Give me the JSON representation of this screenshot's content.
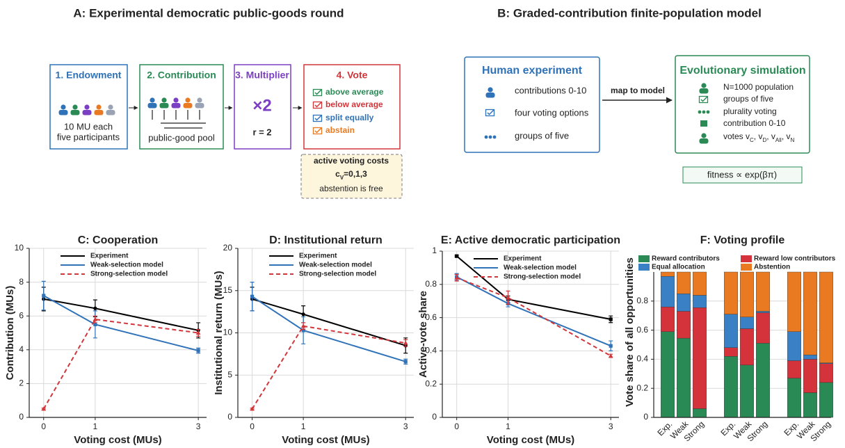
{
  "panel_a": {
    "title": "A: Experimental democratic public-goods round",
    "steps": [
      {
        "label": "1. Endowment",
        "lines": [
          "10 MU each",
          "five participants"
        ]
      },
      {
        "label": "2. Contribution",
        "lines": [
          "public-good pool"
        ]
      },
      {
        "label": "3. Multiplier",
        "lines": [
          "×2",
          "r = 2"
        ]
      },
      {
        "label": "4. Vote",
        "options": [
          "above average",
          "below average",
          "split equally",
          "abstain"
        ]
      }
    ],
    "note": {
      "title": "active voting costs",
      "formula": [
        "c",
        "V",
        "=0,1,3"
      ],
      "footer": "abstention is free"
    }
  },
  "panel_b": {
    "title": "B: Graded-contribution finite-population model",
    "experiment": {
      "title": "Human experiment",
      "items": [
        "contributions 0-10",
        "four voting options",
        "groups of five"
      ]
    },
    "arrow_label": "map to model",
    "simulation": {
      "title": "Evolutionary simulation",
      "items": [
        "N=1000 population",
        "groups of five",
        "plurality voting",
        "contribution 0-10"
      ],
      "votes": [
        "votes v",
        "C",
        ", v",
        "D",
        ", v",
        "All",
        ", v",
        "N"
      ]
    },
    "fitness": "fitness ∝ exp(βπ)"
  },
  "chart_data": [
    {
      "type": "line",
      "title": "C: Cooperation",
      "xlabel": "Voting cost (MUs)",
      "ylabel": "Contribution (MUs)",
      "x": [
        0,
        1,
        3
      ],
      "xlim": [
        -0.28,
        3.16
      ],
      "xticks": [
        0,
        1,
        3
      ],
      "ylim": [
        0,
        10
      ],
      "yticks": [
        0,
        2,
        4,
        6,
        8,
        10
      ],
      "grid": true,
      "legend": "upper center",
      "series": [
        {
          "name": "Experiment",
          "color": "#000000",
          "linestyle": "solid",
          "marker": "circle",
          "values": [
            7.0,
            6.45,
            5.15
          ],
          "errors": [
            0.7,
            0.5,
            0.45
          ]
        },
        {
          "name": "Weak-selection model",
          "color": "#2f72b8",
          "linestyle": "solid",
          "marker": "square",
          "values": [
            7.2,
            5.5,
            3.95
          ],
          "errors": [
            0.85,
            0.8,
            0.15
          ]
        },
        {
          "name": "Strong-selection model",
          "color": "#d0363a",
          "linestyle": "dashed",
          "marker": "triangle",
          "values": [
            0.5,
            5.8,
            5.0
          ],
          "errors": [
            0.05,
            0.2,
            0.2
          ]
        }
      ]
    },
    {
      "type": "line",
      "title": "D: Institutional return",
      "xlabel": "Voting cost (MUs)",
      "ylabel": "Institutional return (MUs)",
      "x": [
        0,
        1,
        3
      ],
      "xlim": [
        -0.28,
        3.16
      ],
      "xticks": [
        0,
        1,
        3
      ],
      "ylim": [
        0,
        20
      ],
      "yticks": [
        0,
        5,
        10,
        15,
        20
      ],
      "grid": true,
      "legend": "upper center",
      "series": [
        {
          "name": "Experiment",
          "color": "#000000",
          "linestyle": "solid",
          "marker": "circle",
          "values": [
            14.0,
            12.2,
            8.5
          ],
          "errors": [
            1.4,
            1.0,
            0.9
          ]
        },
        {
          "name": "Weak-selection model",
          "color": "#2f72b8",
          "linestyle": "solid",
          "marker": "square",
          "values": [
            14.3,
            10.3,
            6.6
          ],
          "errors": [
            1.7,
            1.6,
            0.3
          ]
        },
        {
          "name": "Strong-selection model",
          "color": "#d0363a",
          "linestyle": "dashed",
          "marker": "triangle",
          "values": [
            1.0,
            10.8,
            8.8
          ],
          "errors": [
            0.1,
            0.4,
            0.4
          ]
        }
      ]
    },
    {
      "type": "line",
      "title": "E: Active democratic participation",
      "xlabel": "Voting cost (MUs)",
      "ylabel": "Active-vote share",
      "x": [
        0,
        1,
        3
      ],
      "xlim": [
        -0.28,
        3.16
      ],
      "xticks": [
        0,
        1,
        3
      ],
      "ylim": [
        0,
        1
      ],
      "yticks": [
        0,
        0.2,
        0.4,
        0.6,
        0.8,
        1
      ],
      "grid": true,
      "legend": "upper center",
      "series": [
        {
          "name": "Experiment",
          "color": "#000000",
          "linestyle": "solid",
          "marker": "square",
          "values": [
            0.97,
            0.71,
            0.59
          ],
          "errors": [
            0.005,
            0.02,
            0.02
          ]
        },
        {
          "name": "Weak-selection model",
          "color": "#2f72b8",
          "linestyle": "solid",
          "marker": "square",
          "values": [
            0.845,
            0.685,
            0.43
          ],
          "errors": [
            0.02,
            0.02,
            0.03
          ]
        },
        {
          "name": "Strong-selection model",
          "color": "#d0363a",
          "linestyle": "dashed",
          "marker": "triangle",
          "values": [
            0.84,
            0.72,
            0.37
          ],
          "errors": [
            0.02,
            0.04,
            0.01
          ]
        }
      ]
    },
    {
      "type": "stacked_bar",
      "title": "F: Voting profile",
      "ylabel": "Vote share of all opportunities",
      "categories": [
        "Exp.",
        "Weak",
        "Strong",
        "Exp.",
        "Weak",
        "Strong",
        "Exp.",
        "Weak",
        "Strong"
      ],
      "ylim": [
        0,
        1
      ],
      "yticks": [
        0,
        0.2,
        0.4,
        0.6,
        0.8
      ],
      "grid": true,
      "legend": "upper center",
      "series": [
        {
          "name": "Reward contributors",
          "color": "#2a8a55",
          "values": [
            0.59,
            0.545,
            0.06,
            0.42,
            0.36,
            0.51,
            0.27,
            0.17,
            0.24
          ]
        },
        {
          "name": "Reward low contributors",
          "color": "#d5333b",
          "values": [
            0.17,
            0.185,
            0.695,
            0.06,
            0.25,
            0.21,
            0.12,
            0.23,
            0.13
          ]
        },
        {
          "name": "Equal allocation",
          "color": "#3a80c4",
          "values": [
            0.21,
            0.12,
            0.085,
            0.23,
            0.08,
            0.01,
            0.2,
            0.03,
            0.005
          ]
        },
        {
          "name": "Abstention",
          "color": "#ea7a22",
          "values": [
            0.03,
            0.15,
            0.16,
            0.29,
            0.31,
            0.27,
            0.41,
            0.57,
            0.625
          ]
        }
      ]
    }
  ]
}
